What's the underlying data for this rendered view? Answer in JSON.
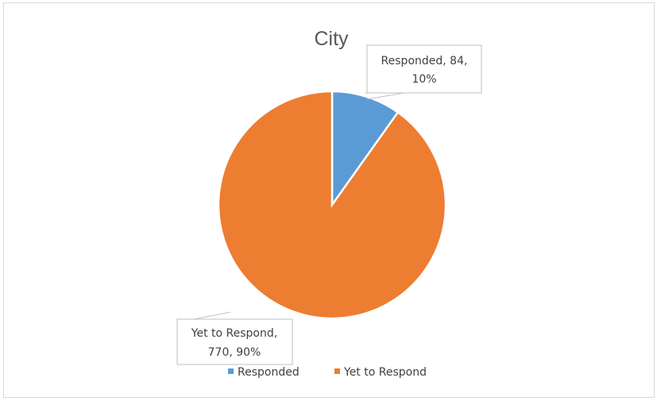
{
  "chart_data": {
    "type": "pie",
    "title": "City",
    "categories": [
      "Responded",
      "Yet to Respond"
    ],
    "values": [
      84,
      770
    ],
    "percents": [
      "10%",
      "90%"
    ],
    "colors": [
      "#5b9bd5",
      "#ed7d31"
    ],
    "data_labels": [
      [
        "Responded, 84,",
        "10%"
      ],
      [
        "Yet to Respond,",
        "770, 90%"
      ]
    ],
    "legend": {
      "position": "bottom",
      "items": [
        "Responded",
        "Yet to Respond"
      ]
    }
  }
}
